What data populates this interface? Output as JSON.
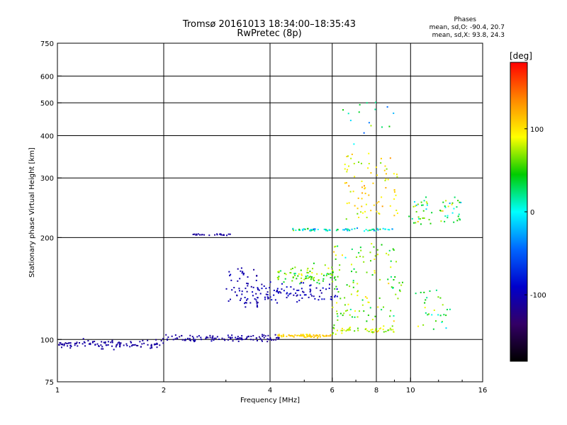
{
  "header": {
    "title_line1": "Tromsø 20161013 18:34:00–18:35:43",
    "title_line2": "RwPretec (8p)"
  },
  "stats": {
    "title": "Phases",
    "o_line": "mean, sd,O: -90.4, 20.7",
    "x_line": "mean, sd,X:  93.8, 24.3"
  },
  "colorbar": {
    "unit": "[deg]",
    "ticks": [
      {
        "value": 100,
        "label": "100"
      },
      {
        "value": 0,
        "label": "0"
      },
      {
        "value": -100,
        "label": "-100"
      }
    ],
    "range": [
      -180,
      180
    ],
    "colors": [
      "#ff0000",
      "#ff8800",
      "#ffff00",
      "#00cc00",
      "#00ffff",
      "#0066ff",
      "#0000cc",
      "#330066",
      "#000000"
    ]
  },
  "chart_data": {
    "type": "scatter",
    "title": "Tromsø 20161013 18:34:00–18:35:43",
    "subtitle": "RwPretec (8p)",
    "xlabel": "Frequency [MHz]",
    "ylabel": "Stationary phase Virtual Height [km]",
    "xscale": "log",
    "yscale": "log",
    "xlim": [
      1,
      16
    ],
    "ylim": [
      75,
      750
    ],
    "x_ticks": [
      1,
      2,
      4,
      6,
      8,
      10,
      16
    ],
    "x_ticklabels": [
      "1",
      "2",
      "4",
      "6",
      "8",
      "10",
      "16"
    ],
    "y_ticks": [
      75,
      100,
      200,
      300,
      400,
      500,
      600,
      750
    ],
    "y_ticklabels": [
      "75",
      "100",
      "200",
      "300",
      "400",
      "500",
      "600",
      "750"
    ],
    "grid": true,
    "color_by": "phase [deg]",
    "clusters": [
      {
        "x_start": 1.0,
        "x_end": 2.0,
        "y_start": 95,
        "y_end": 99,
        "spread": 0.025,
        "count": 110,
        "phase": -110,
        "phase_sd": 10
      },
      {
        "x_start": 2.0,
        "x_end": 4.3,
        "y_start": 99,
        "y_end": 103,
        "spread": 0.012,
        "count": 110,
        "phase": -110,
        "phase_sd": 12
      },
      {
        "x_start": 4.2,
        "x_end": 6.0,
        "y_start": 102,
        "y_end": 103,
        "spread": 0.01,
        "count": 70,
        "phase": 110,
        "phase_sd": 20
      },
      {
        "x_start": 6.0,
        "x_end": 9.0,
        "y_start": 105,
        "y_end": 108,
        "spread": 0.025,
        "count": 50,
        "phase": 80,
        "phase_sd": 50
      },
      {
        "x_start": 2.4,
        "x_end": 3.1,
        "y_start": 203,
        "y_end": 205,
        "spread": 0.006,
        "count": 24,
        "phase": -110,
        "phase_sd": 8
      },
      {
        "x_start": 4.6,
        "x_end": 9.0,
        "y_start": 210,
        "y_end": 212,
        "spread": 0.01,
        "count": 70,
        "phase": 0,
        "phase_sd": 90
      },
      {
        "x_start": 3.0,
        "x_end": 3.7,
        "y_start": 125,
        "y_end": 160,
        "spread": 0.045,
        "count": 60,
        "phase": -105,
        "phase_sd": 15
      },
      {
        "x_start": 3.6,
        "x_end": 6.2,
        "y_start": 130,
        "y_end": 145,
        "spread": 0.04,
        "count": 90,
        "phase": -100,
        "phase_sd": 20
      },
      {
        "x_start": 4.2,
        "x_end": 6.2,
        "y_start": 150,
        "y_end": 160,
        "spread": 0.06,
        "count": 80,
        "phase": 60,
        "phase_sd": 60
      },
      {
        "x_start": 6.0,
        "x_end": 9.5,
        "y_start": 110,
        "y_end": 190,
        "spread": 0.08,
        "count": 120,
        "phase": 60,
        "phase_sd": 70
      },
      {
        "x_start": 6.5,
        "x_end": 9.2,
        "y_start": 230,
        "y_end": 350,
        "spread": 0.08,
        "count": 80,
        "phase": 100,
        "phase_sd": 50
      },
      {
        "x_start": 9.8,
        "x_end": 14.0,
        "y_start": 220,
        "y_end": 260,
        "spread": 0.05,
        "count": 60,
        "phase": 40,
        "phase_sd": 90
      },
      {
        "x_start": 10.0,
        "x_end": 13.0,
        "y_start": 110,
        "y_end": 140,
        "spread": 0.06,
        "count": 30,
        "phase": 40,
        "phase_sd": 80
      },
      {
        "x_start": 6.3,
        "x_end": 9.0,
        "y_start": 380,
        "y_end": 550,
        "spread": 0.05,
        "count": 16,
        "phase": 10,
        "phase_sd": 90
      }
    ]
  }
}
